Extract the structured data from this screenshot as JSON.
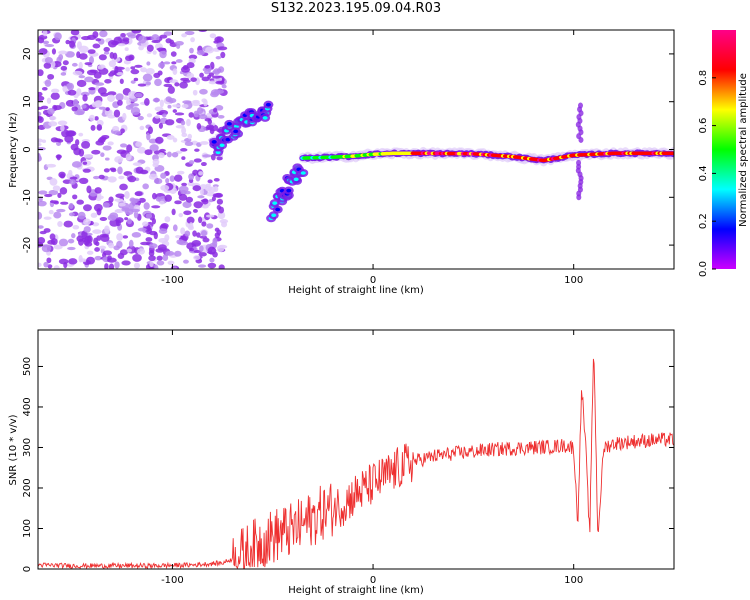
{
  "title": "S132.2023.195.09.04.R03",
  "colors": {
    "snr_line": "#ee3030",
    "noise": "#8a2be2",
    "colorbar_stops": [
      "#cc00ff",
      "#0000ff",
      "#00ffff",
      "#00ff00",
      "#ffff00",
      "#ff0000",
      "#ff0088"
    ]
  },
  "chart_data": [
    {
      "type": "heatmap",
      "title": "",
      "xlabel": "Height of straight line (km)",
      "ylabel": "Frequency (Hz)",
      "xlim": [
        -167,
        150
      ],
      "ylim": [
        -25,
        25
      ],
      "x_ticks": [
        -100,
        0,
        100
      ],
      "y_ticks": [
        -20,
        -10,
        0,
        10,
        20
      ],
      "colorbar": {
        "label": "Normalized spectral amplitude",
        "range": [
          0.0,
          1.0
        ],
        "ticks": [
          0.0,
          0.2,
          0.4,
          0.6,
          0.8
        ]
      },
      "features": {
        "noise_region_x": [
          -167,
          -78
        ],
        "main_line_x": [
          -35,
          150
        ],
        "main_line_freq": [
          -1.8,
          -1.6,
          -1.4,
          -1.0,
          -0.8,
          -0.8,
          -0.9,
          -1.5,
          -2.3,
          -1.2,
          -0.8,
          -0.8
        ],
        "main_line_x_points": [
          -35,
          -20,
          -10,
          0,
          10,
          25,
          50,
          70,
          85,
          100,
          120,
          150
        ],
        "upper_branch": [
          [
            -80,
            0
          ],
          [
            -70,
            4
          ],
          [
            -60,
            7
          ],
          [
            -52,
            8
          ]
        ],
        "lower_branch": [
          [
            -50,
            -13
          ],
          [
            -43,
            -8
          ],
          [
            -35,
            -4
          ]
        ],
        "spike_x": 103,
        "spike_freq_range": [
          -10,
          10
        ]
      }
    },
    {
      "type": "line",
      "title": "",
      "xlabel": "Height of straight line (km)",
      "ylabel": "SNR (10 * v/v)",
      "xlim": [
        -167,
        150
      ],
      "ylim": [
        0,
        590
      ],
      "x_ticks": [
        -100,
        0,
        100
      ],
      "y_ticks": [
        0,
        100,
        200,
        300,
        400,
        500
      ],
      "series": [
        {
          "x": [
            -167,
            -150,
            -130,
            -110,
            -90,
            -75,
            -65,
            -55,
            -45,
            -40,
            -35,
            -30,
            -25,
            -20,
            -15,
            -10,
            -5,
            0,
            5,
            10,
            15,
            20,
            25,
            30,
            40,
            50,
            60,
            70,
            80,
            90,
            95,
            100,
            102,
            104,
            106,
            108,
            110,
            112,
            115,
            120,
            130,
            140,
            150
          ],
          "values": [
            10,
            8,
            8,
            8,
            10,
            15,
            35,
            70,
            90,
            95,
            110,
            125,
            140,
            150,
            160,
            180,
            195,
            210,
            225,
            240,
            255,
            265,
            272,
            278,
            285,
            290,
            295,
            298,
            300,
            302,
            305,
            300,
            110,
            450,
            300,
            80,
            560,
            80,
            300,
            310,
            315,
            318,
            320
          ]
        }
      ]
    }
  ]
}
